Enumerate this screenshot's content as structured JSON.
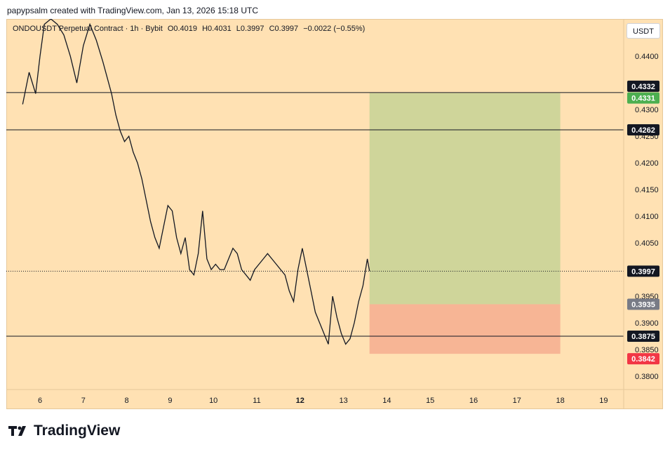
{
  "header": {
    "attribution": "papypsalm created with TradingView.com, Jan 13, 2026 15:18 UTC"
  },
  "symbol_bar": {
    "symbol": "ONDOUSDT Perpetual Contract · 1h · Bybit",
    "open": "O0.4019",
    "high": "H0.4031",
    "low": "L0.3997",
    "close": "C0.3997",
    "change": "−0.0022 (−0.55%)"
  },
  "currency_button": "USDT",
  "brand": {
    "name": "TradingView"
  },
  "colors": {
    "background": "#ffe1b3",
    "profit_zone": "#cfd59a",
    "stop_zone": "#f7b595",
    "line": "#131722",
    "profit_label": "#4caf50",
    "stop_label": "#f23645",
    "entry_label": "#787b86",
    "price_label": "#131722"
  },
  "chart_data": {
    "type": "line",
    "title": "",
    "xlabel": "",
    "ylabel": "",
    "x_ticks": [
      "6",
      "7",
      "8",
      "9",
      "10",
      "11",
      "12",
      "13",
      "14",
      "15",
      "16",
      "17",
      "18",
      "19"
    ],
    "y_ticks": [
      "0.4400",
      "0.4300",
      "0.4250",
      "0.4200",
      "0.4150",
      "0.4100",
      "0.4050",
      "0.3950",
      "0.3900",
      "0.3850",
      "0.3800"
    ],
    "ylim": [
      0.3775,
      0.447
    ],
    "series": [
      {
        "x": [
          5.6,
          5.75,
          5.9,
          6.0,
          6.1,
          6.25,
          6.4,
          6.55,
          6.7,
          6.85,
          7.0,
          7.15,
          7.3,
          7.45,
          7.55,
          7.65,
          7.75,
          7.85,
          7.95,
          8.05,
          8.15,
          8.25,
          8.35,
          8.45,
          8.55,
          8.65,
          8.75,
          8.85,
          8.95,
          9.05,
          9.15,
          9.25,
          9.35,
          9.45,
          9.55,
          9.65,
          9.75,
          9.85,
          9.95,
          10.05,
          10.15,
          10.25,
          10.35,
          10.45,
          10.55,
          10.65,
          10.75,
          10.85,
          10.95,
          11.05,
          11.15,
          11.25,
          11.35,
          11.45,
          11.55,
          11.65,
          11.75,
          11.85,
          11.95,
          12.05,
          12.15,
          12.25,
          12.35,
          12.45,
          12.55,
          12.65,
          12.75,
          12.85,
          12.95,
          13.05,
          13.15,
          13.25,
          13.35,
          13.45,
          13.55,
          13.6
        ],
        "values": [
          0.431,
          0.437,
          0.433,
          0.44,
          0.446,
          0.447,
          0.446,
          0.444,
          0.44,
          0.435,
          0.442,
          0.446,
          0.443,
          0.439,
          0.436,
          0.433,
          0.429,
          0.426,
          0.424,
          0.425,
          0.422,
          0.42,
          0.417,
          0.413,
          0.409,
          0.406,
          0.404,
          0.408,
          0.412,
          0.411,
          0.406,
          0.403,
          0.406,
          0.4,
          0.399,
          0.403,
          0.411,
          0.402,
          0.4,
          0.401,
          0.4,
          0.4,
          0.402,
          0.404,
          0.403,
          0.4,
          0.399,
          0.398,
          0.4,
          0.401,
          0.402,
          0.403,
          0.402,
          0.401,
          0.4,
          0.399,
          0.396,
          0.394,
          0.4,
          0.404,
          0.4,
          0.396,
          0.392,
          0.39,
          0.388,
          0.386,
          0.395,
          0.391,
          0.388,
          0.386,
          0.387,
          0.39,
          0.394,
          0.397,
          0.402,
          0.3997
        ]
      }
    ],
    "horizontal_lines": [
      0.4332,
      0.4262,
      0.3875
    ],
    "last_price": 0.3997,
    "position_tool": {
      "x_start": 13.6,
      "x_end": 18.0,
      "entry": 0.3935,
      "target": 0.4331,
      "stop": 0.3842
    },
    "price_labels": [
      {
        "value": 0.4332,
        "text": "0.4332",
        "kind": "line"
      },
      {
        "value": 0.4331,
        "text": "0.4331",
        "kind": "target"
      },
      {
        "value": 0.4262,
        "text": "0.4262",
        "kind": "line"
      },
      {
        "value": 0.3997,
        "text": "0.3997",
        "kind": "last"
      },
      {
        "value": 0.3935,
        "text": "0.3935",
        "kind": "entry"
      },
      {
        "value": 0.3875,
        "text": "0.3875",
        "kind": "line"
      },
      {
        "value": 0.3842,
        "text": "0.3842",
        "kind": "stop"
      }
    ]
  }
}
